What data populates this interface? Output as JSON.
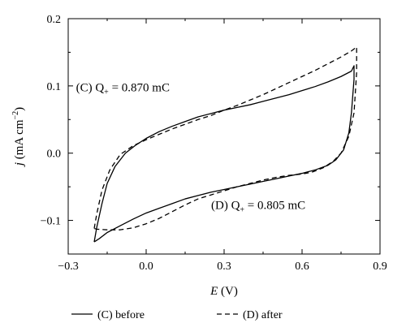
{
  "chart_data": {
    "type": "line",
    "xlabel": {
      "var": "E",
      "unit": " (V)"
    },
    "ylabel": {
      "var": "j",
      "unit": " (mA cm",
      "sup": "−2",
      "close": ")"
    },
    "xlim": [
      -0.3,
      0.9
    ],
    "ylim": [
      -0.15,
      0.2
    ],
    "xticks": [
      -0.3,
      0.0,
      0.3,
      0.6,
      0.9
    ],
    "xtick_labels": [
      "−0.3",
      "0.0",
      "0.3",
      "0.6",
      "0.9"
    ],
    "yticks": [
      -0.1,
      0.0,
      0.1,
      0.2
    ],
    "ytick_labels": [
      "−0.1",
      "0.0",
      "0.1",
      "0.2"
    ],
    "grid": false,
    "legend_position": "bottom",
    "annotations": [
      {
        "id": "c",
        "prefix": "(C) Q",
        "sub": "+",
        "suffix": " = 0.870 mC",
        "x": -0.27,
        "y": 0.092
      },
      {
        "id": "d",
        "prefix": "(D) Q",
        "sub": "+",
        "suffix": " = 0.805 mC",
        "x": 0.25,
        "y": -0.083
      }
    ],
    "series": [
      {
        "name": "(C) before",
        "dash": "solid",
        "x": [
          -0.2,
          -0.19,
          -0.17,
          -0.15,
          -0.12,
          -0.08,
          -0.04,
          0.0,
          0.05,
          0.1,
          0.15,
          0.2,
          0.25,
          0.3,
          0.35,
          0.4,
          0.45,
          0.5,
          0.55,
          0.6,
          0.65,
          0.7,
          0.75,
          0.79,
          0.8,
          0.8,
          0.79,
          0.78,
          0.76,
          0.73,
          0.7,
          0.65,
          0.6,
          0.55,
          0.5,
          0.45,
          0.4,
          0.35,
          0.3,
          0.25,
          0.2,
          0.15,
          0.1,
          0.05,
          0.0,
          -0.05,
          -0.1,
          -0.15,
          -0.18,
          -0.2
        ],
        "y": [
          -0.132,
          -0.11,
          -0.075,
          -0.045,
          -0.02,
          0.0,
          0.012,
          0.022,
          0.032,
          0.04,
          0.047,
          0.054,
          0.059,
          0.064,
          0.068,
          0.072,
          0.077,
          0.082,
          0.087,
          0.093,
          0.099,
          0.106,
          0.114,
          0.122,
          0.13,
          0.11,
          0.06,
          0.03,
          0.005,
          -0.01,
          -0.018,
          -0.025,
          -0.03,
          -0.034,
          -0.038,
          -0.042,
          -0.046,
          -0.05,
          -0.054,
          -0.058,
          -0.063,
          -0.068,
          -0.075,
          -0.082,
          -0.089,
          -0.098,
          -0.108,
          -0.118,
          -0.127,
          -0.132
        ]
      },
      {
        "name": "(D) after",
        "dash": "dashed",
        "x": [
          -0.2,
          -0.19,
          -0.17,
          -0.14,
          -0.1,
          -0.05,
          0.0,
          0.05,
          0.1,
          0.15,
          0.2,
          0.25,
          0.3,
          0.35,
          0.4,
          0.45,
          0.5,
          0.55,
          0.6,
          0.65,
          0.7,
          0.75,
          0.79,
          0.81,
          0.81,
          0.8,
          0.78,
          0.75,
          0.72,
          0.68,
          0.64,
          0.6,
          0.55,
          0.5,
          0.45,
          0.4,
          0.35,
          0.3,
          0.25,
          0.2,
          0.15,
          0.1,
          0.05,
          0.0,
          -0.05,
          -0.1,
          -0.15,
          -0.19,
          -0.2
        ],
        "y": [
          -0.112,
          -0.09,
          -0.055,
          -0.025,
          -0.002,
          0.011,
          0.02,
          0.028,
          0.036,
          0.043,
          0.05,
          0.056,
          0.064,
          0.071,
          0.079,
          0.087,
          0.096,
          0.105,
          0.114,
          0.123,
          0.133,
          0.143,
          0.152,
          0.158,
          0.12,
          0.06,
          0.025,
          0.0,
          -0.012,
          -0.022,
          -0.028,
          -0.031,
          -0.033,
          -0.036,
          -0.04,
          -0.045,
          -0.05,
          -0.056,
          -0.062,
          -0.068,
          -0.077,
          -0.087,
          -0.097,
          -0.105,
          -0.111,
          -0.114,
          -0.114,
          -0.113,
          -0.112
        ]
      }
    ]
  }
}
